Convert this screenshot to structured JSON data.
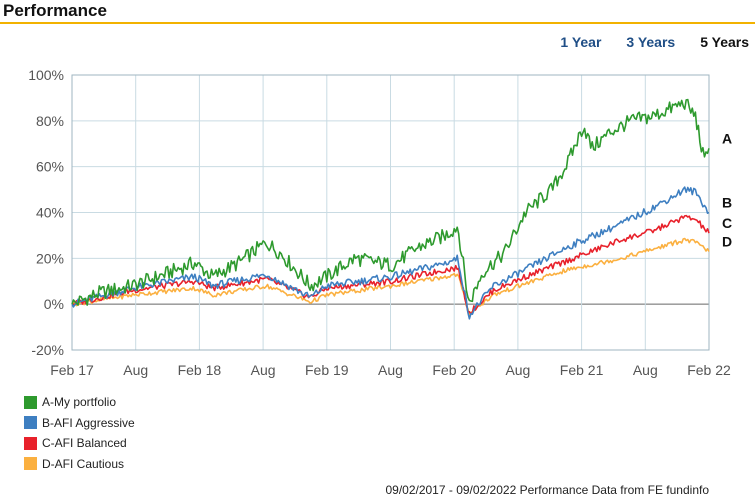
{
  "header": {
    "title": "Performance"
  },
  "period_tabs": [
    {
      "label": "1 Year",
      "active": false
    },
    {
      "label": "3 Years",
      "active": false
    },
    {
      "label": "5 Years",
      "active": true
    }
  ],
  "footer": {
    "text": "09/02/2017 - 09/02/2022 Performance Data from FE fundinfo"
  },
  "colors": {
    "accent_rule": "#f2b200",
    "tab_link": "#1f4e86"
  },
  "chart_data": {
    "type": "line",
    "title": "",
    "xlabel": "",
    "ylabel": "",
    "x_ticks": [
      "Feb 17",
      "Aug",
      "Feb 18",
      "Aug",
      "Feb 19",
      "Aug",
      "Feb 20",
      "Aug",
      "Feb 21",
      "Aug",
      "Feb 22"
    ],
    "y_ticks": [
      "-20%",
      "0%",
      "20%",
      "40%",
      "60%",
      "80%",
      "100%"
    ],
    "ylim": [
      -20,
      100
    ],
    "xlim": [
      "2017-02-09",
      "2022-02-09"
    ],
    "grid": true,
    "legend_position": "bottom-left",
    "series": [
      {
        "name": "A-My portfolio",
        "end_label": "A",
        "color": "#2e9a2e",
        "points": [
          [
            "2017-02-09",
            0
          ],
          [
            "2017-05-01",
            5
          ],
          [
            "2017-08-01",
            8
          ],
          [
            "2017-11-01",
            13
          ],
          [
            "2018-01-25",
            18
          ],
          [
            "2018-03-20",
            12
          ],
          [
            "2018-06-01",
            18
          ],
          [
            "2018-08-20",
            27
          ],
          [
            "2018-10-01",
            22
          ],
          [
            "2018-12-24",
            8
          ],
          [
            "2019-02-09",
            12
          ],
          [
            "2019-05-01",
            20
          ],
          [
            "2019-08-15",
            17
          ],
          [
            "2019-11-01",
            25
          ],
          [
            "2020-01-15",
            30
          ],
          [
            "2020-02-20",
            34
          ],
          [
            "2020-03-23",
            0
          ],
          [
            "2020-05-01",
            14
          ],
          [
            "2020-07-01",
            22
          ],
          [
            "2020-09-01",
            40
          ],
          [
            "2020-11-15",
            50
          ],
          [
            "2021-01-01",
            62
          ],
          [
            "2021-02-15",
            78
          ],
          [
            "2021-03-10",
            68
          ],
          [
            "2021-05-01",
            75
          ],
          [
            "2021-07-01",
            80
          ],
          [
            "2021-09-01",
            82
          ],
          [
            "2021-11-01",
            86
          ],
          [
            "2021-12-01",
            88
          ],
          [
            "2022-01-01",
            82
          ],
          [
            "2022-01-27",
            62
          ],
          [
            "2022-02-09",
            68
          ]
        ]
      },
      {
        "name": "B-AFI Aggressive",
        "end_label": "B",
        "color": "#3e7fc1",
        "points": [
          [
            "2017-02-09",
            0
          ],
          [
            "2017-08-01",
            7
          ],
          [
            "2018-01-25",
            12
          ],
          [
            "2018-03-20",
            8
          ],
          [
            "2018-08-20",
            13
          ],
          [
            "2018-12-24",
            3
          ],
          [
            "2019-02-09",
            8
          ],
          [
            "2019-08-15",
            12
          ],
          [
            "2020-01-15",
            18
          ],
          [
            "2020-02-20",
            20
          ],
          [
            "2020-03-23",
            -5
          ],
          [
            "2020-06-01",
            8
          ],
          [
            "2020-09-01",
            15
          ],
          [
            "2020-12-31",
            25
          ],
          [
            "2021-06-01",
            35
          ],
          [
            "2021-09-01",
            42
          ],
          [
            "2021-12-01",
            50
          ],
          [
            "2022-01-01",
            49
          ],
          [
            "2022-02-09",
            40
          ]
        ]
      },
      {
        "name": "C-AFI Balanced",
        "end_label": "C",
        "color": "#e8212b",
        "points": [
          [
            "2017-02-09",
            0
          ],
          [
            "2017-08-01",
            6
          ],
          [
            "2018-01-25",
            10
          ],
          [
            "2018-03-20",
            7
          ],
          [
            "2018-08-20",
            11
          ],
          [
            "2018-12-24",
            3
          ],
          [
            "2019-02-09",
            7
          ],
          [
            "2019-08-15",
            10
          ],
          [
            "2020-01-15",
            15
          ],
          [
            "2020-02-20",
            16
          ],
          [
            "2020-03-23",
            -4
          ],
          [
            "2020-06-01",
            6
          ],
          [
            "2020-09-01",
            12
          ],
          [
            "2020-12-31",
            19
          ],
          [
            "2021-06-01",
            28
          ],
          [
            "2021-09-01",
            32
          ],
          [
            "2021-12-01",
            38
          ],
          [
            "2022-01-01",
            37
          ],
          [
            "2022-02-09",
            31
          ]
        ]
      },
      {
        "name": "D-AFI Cautious",
        "end_label": "D",
        "color": "#fbb040",
        "points": [
          [
            "2017-02-09",
            0
          ],
          [
            "2017-08-01",
            4
          ],
          [
            "2018-01-25",
            7
          ],
          [
            "2018-03-20",
            4
          ],
          [
            "2018-08-20",
            8
          ],
          [
            "2018-12-24",
            1
          ],
          [
            "2019-02-09",
            4
          ],
          [
            "2019-08-15",
            8
          ],
          [
            "2020-01-15",
            12
          ],
          [
            "2020-02-20",
            13
          ],
          [
            "2020-03-23",
            -4
          ],
          [
            "2020-06-01",
            4
          ],
          [
            "2020-09-01",
            9
          ],
          [
            "2020-12-31",
            15
          ],
          [
            "2021-06-01",
            20
          ],
          [
            "2021-09-01",
            24
          ],
          [
            "2021-12-01",
            28
          ],
          [
            "2022-01-01",
            27
          ],
          [
            "2022-02-09",
            23
          ]
        ]
      }
    ]
  }
}
